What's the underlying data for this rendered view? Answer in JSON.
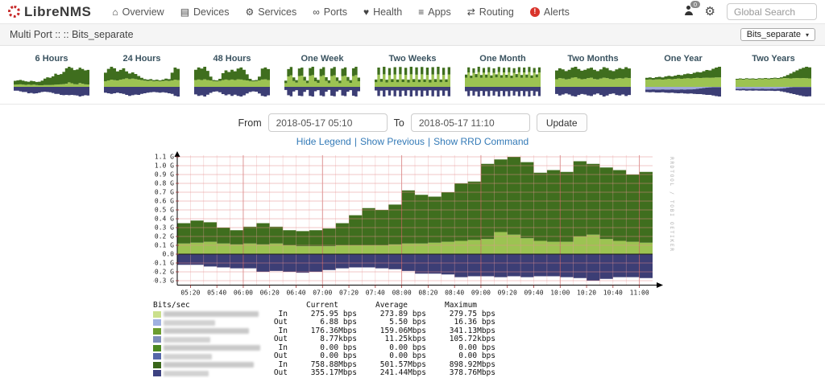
{
  "navbar": {
    "brand": "LibreNMS",
    "items": [
      {
        "label": "Overview",
        "icon": "home"
      },
      {
        "label": "Devices",
        "icon": "devices"
      },
      {
        "label": "Services",
        "icon": "services"
      },
      {
        "label": "Ports",
        "icon": "ports"
      },
      {
        "label": "Health",
        "icon": "health"
      },
      {
        "label": "Apps",
        "icon": "apps"
      },
      {
        "label": "Routing",
        "icon": "routing"
      },
      {
        "label": "Alerts",
        "icon": "alerts"
      }
    ],
    "user_badge": "0",
    "search_placeholder": "Global Search"
  },
  "breadcrumb": {
    "text": "Multi Port :: :: Bits_separate",
    "selector": "Bits_separate"
  },
  "thumbnails": [
    {
      "label": "6 Hours",
      "g": [
        0.33,
        0.36,
        0.38,
        0.34,
        0.3,
        0.28,
        0.33,
        0.31,
        0.27,
        0.28,
        0.34,
        0.45,
        0.52,
        0.5,
        0.58,
        0.72,
        0.66,
        0.7,
        0.82,
        1.02,
        1.1,
        1.04,
        0.92,
        0.95,
        1.05,
        0.98,
        0.9,
        0.93
      ],
      "l": [
        0.12,
        0.13,
        0.14,
        0.12,
        0.11,
        0.12,
        0.11,
        0.12,
        0.1,
        0.09,
        0.09,
        0.1,
        0.1,
        0.1,
        0.11,
        0.12,
        0.13,
        0.14,
        0.15,
        0.17,
        0.25,
        0.2,
        0.15,
        0.14,
        0.21,
        0.17,
        0.14,
        0.13
      ],
      "o": [
        0.12,
        0.12,
        0.14,
        0.16,
        0.16,
        0.2,
        0.19,
        0.21,
        0.2,
        0.18,
        0.16,
        0.15,
        0.16,
        0.17,
        0.19,
        0.22,
        0.22,
        0.25,
        0.26,
        0.25,
        0.26,
        0.25,
        0.26,
        0.27,
        0.3,
        0.28,
        0.26,
        0.27
      ]
    },
    {
      "label": "24 Hours",
      "g": [
        0.55,
        0.7,
        0.78,
        0.72,
        0.6,
        0.66,
        0.72,
        0.6,
        0.52,
        0.56,
        0.5,
        0.42,
        0.35,
        0.3,
        0.28,
        0.3,
        0.26,
        0.28,
        0.25,
        0.28,
        0.32,
        0.3,
        0.55,
        0.75,
        0.7
      ],
      "l": [
        0.22,
        0.25,
        0.28,
        0.26,
        0.25,
        0.28,
        0.3,
        0.33,
        0.3,
        0.32,
        0.3,
        0.28,
        0.26,
        0.24,
        0.23,
        0.24,
        0.22,
        0.23,
        0.22,
        0.23,
        0.24,
        0.23,
        0.25,
        0.28,
        0.26
      ],
      "o": [
        0.18,
        0.2,
        0.22,
        0.2,
        0.18,
        0.2,
        0.22,
        0.25,
        0.28,
        0.26,
        0.24,
        0.25,
        0.22,
        0.2,
        0.18,
        0.17,
        0.16,
        0.17,
        0.18,
        0.17,
        0.18,
        0.2,
        0.22,
        0.28,
        0.3
      ]
    },
    {
      "label": "48 Hours",
      "g": [
        0.75,
        0.85,
        0.8,
        0.88,
        0.7,
        0.45,
        0.3,
        0.28,
        0.35,
        0.6,
        0.72,
        0.65,
        0.75,
        0.68,
        0.8,
        0.85,
        0.75,
        0.55,
        0.35,
        0.28,
        0.3,
        0.45,
        0.8,
        0.85,
        0.78
      ],
      "l": [
        0.3,
        0.32,
        0.3,
        0.33,
        0.3,
        0.28,
        0.25,
        0.24,
        0.26,
        0.3,
        0.32,
        0.3,
        0.32,
        0.3,
        0.33,
        0.32,
        0.3,
        0.28,
        0.25,
        0.24,
        0.25,
        0.28,
        0.32,
        0.33,
        0.3
      ],
      "o": [
        0.25,
        0.3,
        0.28,
        0.32,
        0.26,
        0.2,
        0.16,
        0.15,
        0.18,
        0.24,
        0.28,
        0.25,
        0.3,
        0.26,
        0.3,
        0.32,
        0.28,
        0.22,
        0.17,
        0.15,
        0.16,
        0.22,
        0.3,
        0.32,
        0.28
      ]
    },
    {
      "label": "One Week",
      "g": [
        0.3,
        0.85,
        0.95,
        0.45,
        0.32,
        0.88,
        0.92,
        0.48,
        0.3,
        0.9,
        0.96,
        0.44,
        0.33,
        0.86,
        0.94,
        0.46,
        0.31,
        0.88,
        0.95,
        0.45,
        0.3,
        0.87,
        0.93,
        0.47,
        0.32,
        0.89,
        0.96,
        0.44
      ],
      "l": [
        0.18,
        0.5,
        0.55,
        0.28,
        0.2,
        0.52,
        0.54,
        0.3,
        0.18,
        0.53,
        0.56,
        0.27,
        0.19,
        0.51,
        0.55,
        0.29,
        0.18,
        0.52,
        0.55,
        0.28,
        0.18,
        0.51,
        0.54,
        0.29,
        0.19,
        0.52,
        0.56,
        0.27
      ],
      "o": [
        0.15,
        0.4,
        0.45,
        0.22,
        0.16,
        0.42,
        0.44,
        0.24,
        0.15,
        0.43,
        0.46,
        0.21,
        0.16,
        0.41,
        0.45,
        0.23,
        0.15,
        0.42,
        0.45,
        0.22,
        0.15,
        0.41,
        0.44,
        0.23,
        0.16,
        0.42,
        0.46,
        0.21
      ]
    },
    {
      "label": "Two Weeks",
      "g": [
        0.35,
        0.92,
        0.38,
        0.96,
        0.34,
        0.9,
        0.37,
        0.94,
        0.35,
        0.95,
        0.36,
        0.91,
        0.34,
        0.96,
        0.37,
        0.93,
        0.35,
        0.95,
        0.36,
        0.92,
        0.34,
        0.94,
        0.37,
        0.96,
        0.35,
        0.91,
        0.36,
        0.94
      ],
      "l": [
        0.22,
        0.58,
        0.24,
        0.6,
        0.21,
        0.56,
        0.23,
        0.59,
        0.22,
        0.6,
        0.23,
        0.57,
        0.21,
        0.6,
        0.23,
        0.58,
        0.22,
        0.6,
        0.23,
        0.57,
        0.21,
        0.59,
        0.23,
        0.6,
        0.22,
        0.57,
        0.23,
        0.59
      ],
      "o": [
        0.15,
        0.38,
        0.16,
        0.4,
        0.14,
        0.36,
        0.15,
        0.39,
        0.15,
        0.4,
        0.16,
        0.37,
        0.14,
        0.4,
        0.15,
        0.38,
        0.15,
        0.4,
        0.16,
        0.37,
        0.14,
        0.39,
        0.15,
        0.4,
        0.15,
        0.37,
        0.16,
        0.39
      ]
    },
    {
      "label": "One Month",
      "g": [
        0.6,
        0.95,
        0.55,
        0.9,
        0.62,
        0.98,
        0.58,
        0.92,
        0.6,
        0.96,
        0.56,
        0.9,
        0.61,
        0.97,
        0.57,
        0.93,
        0.59,
        0.95,
        0.55,
        0.91,
        0.62,
        0.96,
        0.58,
        0.94,
        0.6,
        0.97,
        0.56,
        0.92,
        0.61,
        0.95
      ],
      "l": [
        0.45,
        0.7,
        0.42,
        0.68,
        0.46,
        0.72,
        0.44,
        0.69,
        0.45,
        0.71,
        0.43,
        0.68,
        0.46,
        0.72,
        0.44,
        0.7,
        0.45,
        0.71,
        0.42,
        0.68,
        0.46,
        0.71,
        0.44,
        0.7,
        0.45,
        0.72,
        0.43,
        0.69,
        0.46,
        0.7
      ],
      "o": [
        0.2,
        0.42,
        0.18,
        0.4,
        0.21,
        0.44,
        0.19,
        0.41,
        0.2,
        0.43,
        0.18,
        0.4,
        0.21,
        0.44,
        0.19,
        0.42,
        0.2,
        0.43,
        0.18,
        0.4,
        0.21,
        0.43,
        0.19,
        0.42,
        0.2,
        0.44,
        0.18,
        0.41,
        0.21,
        0.42
      ]
    },
    {
      "label": "Two Months",
      "g": [
        0.75,
        0.85,
        0.8,
        0.72,
        0.78,
        0.88,
        0.92,
        0.82,
        0.74,
        0.78,
        0.84,
        0.88,
        0.78,
        0.72,
        0.8,
        0.9,
        0.86,
        0.76,
        0.72,
        0.8,
        0.86,
        0.82,
        0.9,
        0.84
      ],
      "l": [
        0.35,
        0.4,
        0.38,
        0.34,
        0.36,
        0.42,
        0.44,
        0.38,
        0.35,
        0.36,
        0.4,
        0.42,
        0.36,
        0.34,
        0.38,
        0.42,
        0.4,
        0.36,
        0.34,
        0.38,
        0.4,
        0.38,
        0.42,
        0.4
      ],
      "o": [
        0.28,
        0.34,
        0.3,
        0.26,
        0.3,
        0.36,
        0.38,
        0.32,
        0.28,
        0.3,
        0.34,
        0.36,
        0.3,
        0.26,
        0.32,
        0.38,
        0.34,
        0.28,
        0.26,
        0.32,
        0.34,
        0.3,
        0.36,
        0.32
      ]
    },
    {
      "label": "One Year",
      "g": [
        0.45,
        0.47,
        0.44,
        0.48,
        0.5,
        0.47,
        0.52,
        0.55,
        0.52,
        0.56,
        0.6,
        0.58,
        0.63,
        0.66,
        0.64,
        0.7,
        0.74,
        0.72,
        0.78,
        0.84,
        0.82,
        0.9,
        0.96,
        1.0
      ],
      "l": [
        0.36,
        0.37,
        0.35,
        0.37,
        0.38,
        0.36,
        0.38,
        0.4,
        0.38,
        0.4,
        0.42,
        0.4,
        0.42,
        0.43,
        0.42,
        0.44,
        0.45,
        0.44,
        0.45,
        0.46,
        0.45,
        0.46,
        0.47,
        0.47
      ],
      "lb": [
        0.14,
        0.14,
        0.13,
        0.14,
        0.14,
        0.13,
        0.14,
        0.14,
        0.13,
        0.14,
        0.14,
        0.13,
        0.14,
        0.13,
        0.13,
        0.12,
        0.1,
        0.08,
        0.06,
        0.04,
        0.03,
        0.02,
        0.02,
        0.02
      ],
      "o": [
        0.26,
        0.27,
        0.26,
        0.28,
        0.28,
        0.27,
        0.29,
        0.3,
        0.29,
        0.31,
        0.32,
        0.31,
        0.33,
        0.34,
        0.33,
        0.35,
        0.36,
        0.36,
        0.38,
        0.4,
        0.4,
        0.43,
        0.46,
        0.48
      ]
    },
    {
      "label": "Two Years",
      "g": [
        0.42,
        0.44,
        0.42,
        0.45,
        0.43,
        0.44,
        0.42,
        0.45,
        0.44,
        0.46,
        0.44,
        0.46,
        0.48,
        0.46,
        0.5,
        0.55,
        0.62,
        0.7,
        0.78,
        0.86,
        0.94,
        1.0,
        1.05,
        1.02
      ],
      "l": [
        0.38,
        0.4,
        0.38,
        0.41,
        0.39,
        0.4,
        0.38,
        0.41,
        0.4,
        0.42,
        0.4,
        0.41,
        0.43,
        0.41,
        0.44,
        0.46,
        0.45,
        0.44,
        0.45,
        0.46,
        0.45,
        0.46,
        0.45,
        0.44
      ],
      "lb": [
        0.12,
        0.12,
        0.11,
        0.12,
        0.12,
        0.11,
        0.12,
        0.12,
        0.11,
        0.12,
        0.12,
        0.11,
        0.12,
        0.11,
        0.1,
        0.08,
        0.05,
        0.03,
        0.02,
        0.02,
        0.02,
        0.02,
        0.02,
        0.02
      ],
      "o": [
        0.2,
        0.21,
        0.2,
        0.22,
        0.21,
        0.22,
        0.21,
        0.22,
        0.22,
        0.23,
        0.22,
        0.23,
        0.24,
        0.23,
        0.26,
        0.3,
        0.34,
        0.38,
        0.42,
        0.46,
        0.5,
        0.54,
        0.56,
        0.55
      ]
    }
  ],
  "controls": {
    "from_label": "From",
    "from_value": "2018-05-17 05:10",
    "to_label": "To",
    "to_value": "2018-05-17 11:10",
    "update_label": "Update",
    "links": [
      "Hide Legend",
      "Show Previous",
      "Show RRD Command"
    ]
  },
  "chart_data": {
    "type": "area",
    "title": "",
    "stacked": true,
    "unit": "bits/sec (G = Gbps)",
    "x_start": "05:10",
    "x_end": "11:10",
    "x_step_minutes": 10,
    "x_tick_labels": [
      "05:20",
      "05:40",
      "06:00",
      "06:20",
      "06:40",
      "07:00",
      "07:20",
      "07:40",
      "08:00",
      "08:20",
      "08:40",
      "09:00",
      "09:20",
      "09:40",
      "10:00",
      "10:20",
      "10:40",
      "11:00"
    ],
    "y_tick_labels": [
      "1.1 G",
      "1.0 G",
      "0.9 G",
      "0.8 G",
      "0.7 G",
      "0.6 G",
      "0.5 G",
      "0.4 G",
      "0.3 G",
      "0.2 G",
      "0.1 G",
      "0.0",
      "-0.1 G",
      "-0.2 G",
      "-0.3 G"
    ],
    "ylim": [
      -0.35,
      1.15
    ],
    "grid": true,
    "watermark": "RRDTOOL / TOBI OETIKER",
    "series": [
      {
        "name": "traffic-in-light-green-band-top",
        "color": "#9cc352",
        "values": [
          0.12,
          0.13,
          0.14,
          0.12,
          0.11,
          0.12,
          0.11,
          0.12,
          0.1,
          0.09,
          0.09,
          0.09,
          0.1,
          0.1,
          0.1,
          0.1,
          0.11,
          0.12,
          0.12,
          0.13,
          0.14,
          0.15,
          0.16,
          0.17,
          0.25,
          0.22,
          0.18,
          0.15,
          0.14,
          0.14,
          0.2,
          0.22,
          0.17,
          0.15,
          0.14,
          0.13
        ]
      },
      {
        "name": "traffic-in-dark-green-stack-top",
        "color": "#3f6e1e",
        "values": [
          0.35,
          0.38,
          0.36,
          0.3,
          0.27,
          0.31,
          0.35,
          0.31,
          0.27,
          0.26,
          0.27,
          0.29,
          0.35,
          0.44,
          0.52,
          0.5,
          0.56,
          0.72,
          0.67,
          0.65,
          0.7,
          0.8,
          0.82,
          1.02,
          1.07,
          1.1,
          1.04,
          0.92,
          0.95,
          0.93,
          1.05,
          1.02,
          0.98,
          0.95,
          0.9,
          0.93
        ]
      },
      {
        "name": "traffic-out-navy-below-zero",
        "color": "#3c3e75",
        "values": [
          -0.12,
          -0.12,
          -0.14,
          -0.15,
          -0.16,
          -0.16,
          -0.2,
          -0.19,
          -0.2,
          -0.21,
          -0.2,
          -0.18,
          -0.16,
          -0.15,
          -0.15,
          -0.16,
          -0.17,
          -0.19,
          -0.22,
          -0.22,
          -0.23,
          -0.26,
          -0.25,
          -0.25,
          -0.26,
          -0.25,
          -0.26,
          -0.25,
          -0.25,
          -0.26,
          -0.27,
          -0.3,
          -0.28,
          -0.26,
          -0.26,
          -0.27
        ]
      }
    ]
  },
  "legend": {
    "header": {
      "name_col": "Bits/sec",
      "value_cols": [
        "Current",
        "Average",
        "Maximum"
      ]
    },
    "rows": [
      {
        "swatch": "#cbe08d",
        "dir": "In",
        "current": "275.95 bps",
        "average": "273.89 bps",
        "maximum": "279.75 bps"
      },
      {
        "swatch": "#a0b1e1",
        "dir": "Out",
        "current": "6.88 bps",
        "average": "5.50 bps",
        "maximum": "16.36 bps"
      },
      {
        "swatch": "#6b9c2f",
        "dir": "In",
        "current": "176.36Mbps",
        "average": "159.06Mbps",
        "maximum": "341.13Mbps"
      },
      {
        "swatch": "#7d8cba",
        "dir": "Out",
        "current": "8.77kbps",
        "average": "11.25kbps",
        "maximum": "105.72kbps"
      },
      {
        "swatch": "#4c8922",
        "dir": "In",
        "current": "0.00 bps",
        "average": "0.00 bps",
        "maximum": "0.00 bps"
      },
      {
        "swatch": "#5566a8",
        "dir": "Out",
        "current": "0.00 bps",
        "average": "0.00 bps",
        "maximum": "0.00 bps"
      },
      {
        "swatch": "#39661a",
        "dir": "In",
        "current": "758.88Mbps",
        "average": "501.57Mbps",
        "maximum": "898.92Mbps"
      },
      {
        "swatch": "#3c4180",
        "dir": "Out",
        "current": "355.17Mbps",
        "average": "241.44Mbps",
        "maximum": "378.76Mbps"
      }
    ]
  },
  "colors": {
    "in_dark_green": "#3f6e1e",
    "in_light_green": "#9cc352",
    "out_navy": "#3c3e75",
    "out_periwinkle": "#9fa8d8",
    "link_blue": "#337ab7",
    "alert_red": "#d9342b",
    "grid_pink": "#e9a0a0"
  }
}
